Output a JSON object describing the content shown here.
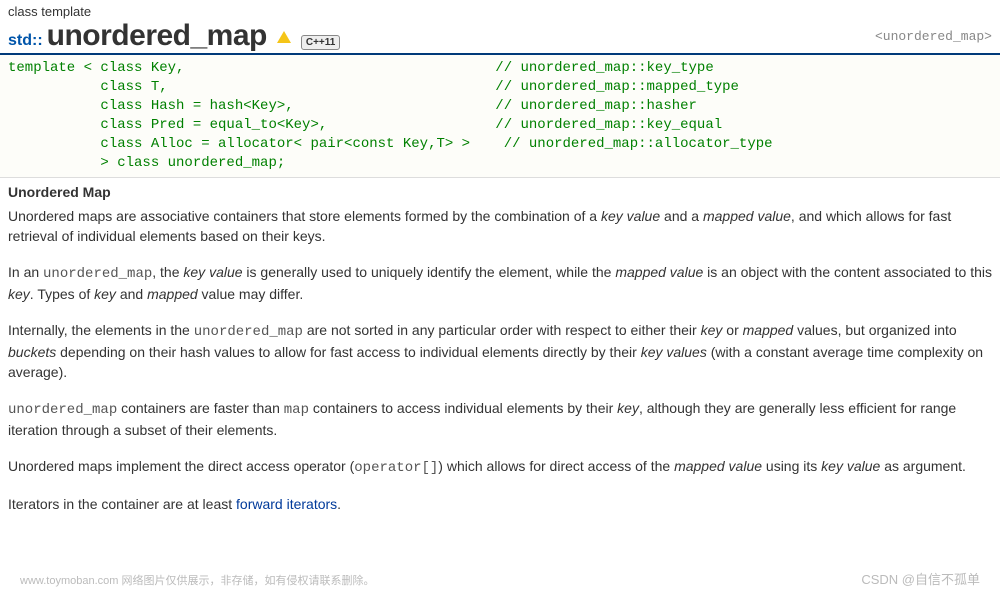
{
  "header": {
    "label": "class template",
    "namespace": "std::",
    "title": "unordered_map",
    "badge": "C++11",
    "include": "<unordered_map>"
  },
  "template_decl": {
    "l1_code": "template < class Key,",
    "l1_comment": "// unordered_map::key_type",
    "l2_code": "           class T,",
    "l2_comment": "// unordered_map::mapped_type",
    "l3_code": "           class Hash = hash<Key>,",
    "l3_comment": "// unordered_map::hasher",
    "l4_code": "           class Pred = equal_to<Key>,",
    "l4_comment": "// unordered_map::key_equal",
    "l5_code": "           class Alloc = allocator< pair<const Key,T> >",
    "l5_comment": "// unordered_map::allocator_type",
    "l6_code": "           > class unordered_map;"
  },
  "section": {
    "title": "Unordered Map",
    "p1_a": "Unordered maps are associative containers that store elements formed by the combination of a ",
    "p1_kv": "key value",
    "p1_b": " and a ",
    "p1_mv": "mapped value",
    "p1_c": ", and which allows for fast retrieval of individual elements based on their keys.",
    "p2_a": "In an ",
    "p2_code1": "unordered_map",
    "p2_b": ", the ",
    "p2_kv": "key value",
    "p2_c": " is generally used to uniquely identify the element, while the ",
    "p2_mv": "mapped value",
    "p2_d": " is an object with the content associated to this ",
    "p2_key": "key",
    "p2_e": ". Types of ",
    "p2_key2": "key",
    "p2_f": " and ",
    "p2_mapped": "mapped",
    "p2_g": " value may differ.",
    "p3_a": "Internally, the elements in the ",
    "p3_code1": "unordered_map",
    "p3_b": " are not sorted in any particular order with respect to either their ",
    "p3_key": "key",
    "p3_c": " or ",
    "p3_mapped": "mapped",
    "p3_d": " values, but organized into ",
    "p3_buckets": "buckets",
    "p3_e": " depending on their hash values to allow for fast access to individual elements directly by their ",
    "p3_kv": "key values",
    "p3_f": " (with a constant average time complexity on average).",
    "p4_code1": "unordered_map",
    "p4_a": " containers are faster than ",
    "p4_code2": "map",
    "p4_b": " containers to access individual elements by their ",
    "p4_key": "key",
    "p4_c": ", although they are generally less efficient for range iteration through a subset of their elements.",
    "p5_a": "Unordered maps implement the direct access operator (",
    "p5_code": "operator[]",
    "p5_b": ") which allows for direct access of the ",
    "p5_mv": "mapped value",
    "p5_c": " using its ",
    "p5_kv": "key value",
    "p5_d": " as argument.",
    "p6_a": "Iterators in the container are at least ",
    "p6_link": "forward iterators",
    "p6_b": "."
  },
  "watermark": {
    "left": "www.toymoban.com 网络图片仅供展示，非存储，如有侵权请联系删除。",
    "right": "CSDN @自信不孤单"
  },
  "style": {
    "template_border_top": "#003a7a",
    "code_color": "#008000",
    "link_color": "#003a9a",
    "namespace_color": "#0055aa"
  }
}
